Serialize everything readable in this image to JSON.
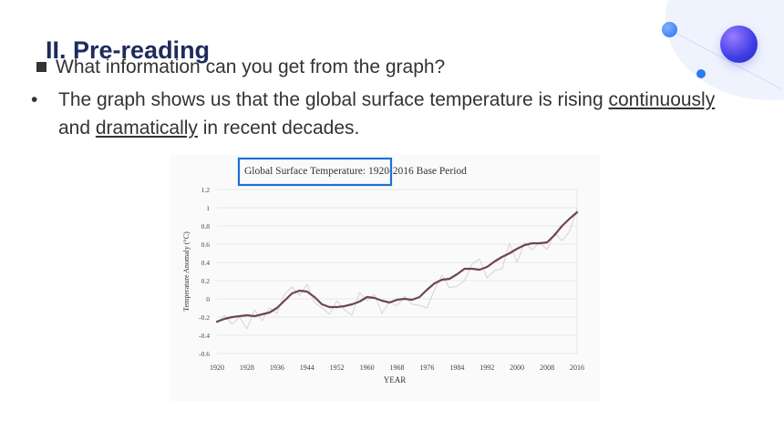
{
  "slide": {
    "heading": "II. Pre-reading",
    "question": "What information can you get from the graph?",
    "answer": {
      "bullet": "•",
      "text_before": "The graph shows us that the global surface temperature is rising ",
      "word1": "continuously",
      "text_middle": " and ",
      "word2": "dramatically",
      "text_after": " in recent decades."
    },
    "colors": {
      "heading": "#1f2b5c",
      "highlight_box": "#1e6fd9",
      "line": "#6e4650"
    }
  },
  "chart_data": {
    "type": "line",
    "title": "Global Surface Temperature: 1920-2016 Base Period",
    "xlabel": "YEAR",
    "ylabel": "Temperature Anomaly (°C)",
    "ylim": [
      -0.6,
      1.2
    ],
    "yticks": [
      -0.6,
      -0.4,
      -0.2,
      0,
      0.2,
      0.4,
      0.6,
      0.8,
      1,
      1.2
    ],
    "ytick_labels": [
      "-0.6",
      "-0.4",
      "-0.2",
      "0",
      "0.2",
      "0.4",
      "0.6",
      "0.8",
      "1",
      "1.2"
    ],
    "xlim": [
      1920,
      2016
    ],
    "xticks": [
      1920,
      1928,
      1936,
      1944,
      1952,
      1960,
      1968,
      1976,
      1984,
      1992,
      2000,
      2008,
      2016
    ],
    "xtick_labels": [
      "1920",
      "1928",
      "1936",
      "1944",
      "1952",
      "1960",
      "1968",
      "1976",
      "1984",
      "1992",
      "2000",
      "2008",
      "2016"
    ],
    "grid": true,
    "series": [
      {
        "x": [
          1920,
          1922,
          1924,
          1926,
          1928,
          1930,
          1932,
          1934,
          1936,
          1938,
          1940,
          1942,
          1944,
          1946,
          1948,
          1950,
          1952,
          1954,
          1956,
          1958,
          1960,
          1962,
          1964,
          1966,
          1968,
          1970,
          1972,
          1974,
          1976,
          1978,
          1980,
          1982,
          1984,
          1986,
          1988,
          1990,
          1992,
          1994,
          1996,
          1998,
          2000,
          2002,
          2004,
          2006,
          2008,
          2010,
          2012,
          2014,
          2016
        ],
        "y": [
          -0.25,
          -0.22,
          -0.2,
          -0.19,
          -0.18,
          -0.19,
          -0.17,
          -0.15,
          -0.1,
          -0.02,
          0.06,
          0.09,
          0.08,
          0.02,
          -0.06,
          -0.09,
          -0.09,
          -0.08,
          -0.06,
          -0.03,
          0.02,
          0.01,
          -0.02,
          -0.04,
          -0.01,
          0.0,
          -0.01,
          0.02,
          0.1,
          0.17,
          0.21,
          0.22,
          0.27,
          0.33,
          0.33,
          0.32,
          0.35,
          0.41,
          0.46,
          0.5,
          0.55,
          0.59,
          0.61,
          0.61,
          0.62,
          0.7,
          0.8,
          0.88,
          0.95
        ]
      },
      {
        "x": [
          1920,
          1922,
          1924,
          1926,
          1928,
          1930,
          1932,
          1934,
          1936,
          1938,
          1940,
          1942,
          1944,
          1946,
          1948,
          1950,
          1952,
          1954,
          1956,
          1958,
          1960,
          1962,
          1964,
          1966,
          1968,
          1970,
          1972,
          1974,
          1976,
          1978,
          1980,
          1982,
          1984,
          1986,
          1988,
          1990,
          1992,
          1994,
          1996,
          1998,
          2000,
          2002,
          2004,
          2006,
          2008,
          2010,
          2012,
          2014,
          2016
        ],
        "y": [
          -0.27,
          -0.18,
          -0.28,
          -0.2,
          -0.33,
          -0.12,
          -0.24,
          -0.1,
          -0.16,
          0.05,
          0.13,
          0.04,
          0.16,
          -0.04,
          -0.1,
          -0.17,
          -0.02,
          -0.12,
          -0.18,
          0.07,
          -0.02,
          0.05,
          -0.16,
          -0.03,
          -0.08,
          0.03,
          -0.06,
          -0.07,
          -0.1,
          0.1,
          0.26,
          0.12,
          0.14,
          0.2,
          0.38,
          0.44,
          0.23,
          0.31,
          0.33,
          0.61,
          0.4,
          0.62,
          0.54,
          0.62,
          0.54,
          0.72,
          0.64,
          0.74,
          0.99
        ]
      }
    ]
  }
}
